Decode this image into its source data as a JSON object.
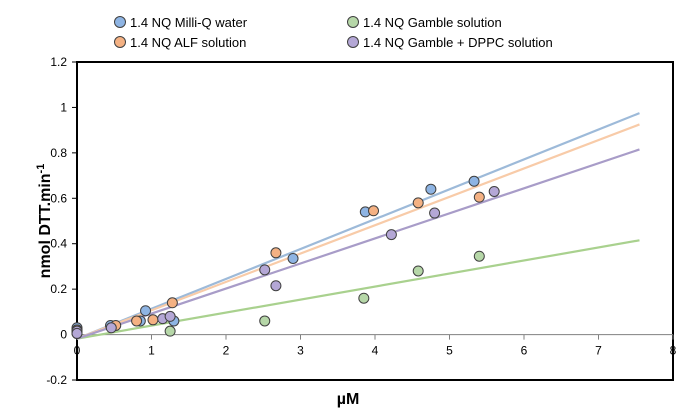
{
  "chart_data": {
    "type": "scatter",
    "xlabel": "µM",
    "ylabel": "nmol DTT.min",
    "ylabel_superscript": "-1",
    "xlim": [
      0,
      8
    ],
    "ylim": [
      -0.2,
      1.2
    ],
    "x_ticks": [
      0,
      1,
      2,
      3,
      4,
      5,
      6,
      7,
      8
    ],
    "y_ticks": [
      -0.2,
      0,
      0.2,
      0.4,
      0.6,
      0.8,
      1,
      1.2
    ],
    "y_tick_labels": [
      "-0.2",
      "0",
      "0.2",
      "0.4",
      "0.6",
      "0.8",
      "1",
      "1.2"
    ],
    "grid": false,
    "legend_position": "top",
    "series": [
      {
        "name": "1.4 NQ Milli-Q water",
        "color": "#8eb4e3",
        "line_color": "#9dbad9",
        "points": [
          [
            0,
            0.03
          ],
          [
            0,
            0.02
          ],
          [
            0,
            0.01
          ],
          [
            0.45,
            0.04
          ],
          [
            0.85,
            0.06
          ],
          [
            0.92,
            0.105
          ],
          [
            1.3,
            0.06
          ],
          [
            2.9,
            0.335
          ],
          [
            3.87,
            0.54
          ],
          [
            4.75,
            0.64
          ],
          [
            5.33,
            0.675
          ]
        ],
        "trend": [
          [
            0,
            -0.018
          ],
          [
            7.55,
            0.975
          ]
        ]
      },
      {
        "name": "1.4 NQ ALF solution",
        "color": "#f4b183",
        "line_color": "#f8cba8",
        "points": [
          [
            0,
            0.02
          ],
          [
            0,
            0.01
          ],
          [
            0.52,
            0.04
          ],
          [
            0.8,
            0.06
          ],
          [
            1.02,
            0.065
          ],
          [
            1.28,
            0.14
          ],
          [
            2.67,
            0.36
          ],
          [
            3.98,
            0.545
          ],
          [
            4.58,
            0.58
          ],
          [
            5.4,
            0.605
          ]
        ],
        "trend": [
          [
            0,
            -0.018
          ],
          [
            7.55,
            0.925
          ]
        ]
      },
      {
        "name": "1.4 NQ Gamble solution",
        "color": "#b6d7a8",
        "line_color": "#a9d18e",
        "points": [
          [
            0,
            0.005
          ],
          [
            1.25,
            0.015
          ],
          [
            2.52,
            0.06
          ],
          [
            3.85,
            0.16
          ],
          [
            4.58,
            0.28
          ],
          [
            5.4,
            0.345
          ]
        ],
        "trend": [
          [
            0,
            -0.018
          ],
          [
            7.55,
            0.415
          ]
        ]
      },
      {
        "name": "1.4 NQ Gamble + DPPC solution",
        "color": "#b4a7d6",
        "line_color": "#a89cc8",
        "points": [
          [
            0,
            0.015
          ],
          [
            0,
            0.005
          ],
          [
            0.46,
            0.03
          ],
          [
            1.15,
            0.07
          ],
          [
            1.25,
            0.08
          ],
          [
            2.52,
            0.285
          ],
          [
            2.67,
            0.215
          ],
          [
            4.22,
            0.44
          ],
          [
            4.8,
            0.535
          ],
          [
            5.6,
            0.63
          ]
        ],
        "trend": [
          [
            0,
            -0.018
          ],
          [
            7.55,
            0.815
          ]
        ]
      }
    ]
  }
}
